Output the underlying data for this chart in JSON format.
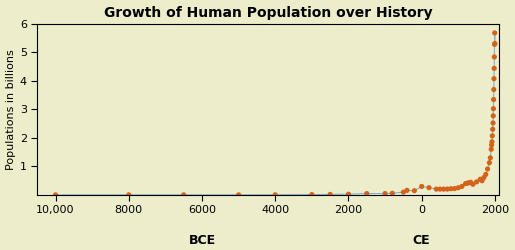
{
  "title": "Growth of Human Population over History",
  "ylabel": "Populations in billions",
  "xlabel_bce": "BCE",
  "xlabel_ce": "CE",
  "background_color": "#ededcc",
  "plot_bg_color": "#ededcc",
  "dot_color": "#d4631a",
  "line_color": "#7ab0d4",
  "ylim": [
    0,
    6
  ],
  "yticks": [
    1,
    2,
    3,
    4,
    5,
    6
  ],
  "data": [
    [
      -10000,
      0.005
    ],
    [
      -8000,
      0.005
    ],
    [
      -6500,
      0.005
    ],
    [
      -5000,
      0.005
    ],
    [
      -4000,
      0.007
    ],
    [
      -3000,
      0.014
    ],
    [
      -2500,
      0.02
    ],
    [
      -2000,
      0.027
    ],
    [
      -1500,
      0.05
    ],
    [
      -1000,
      0.05
    ],
    [
      -800,
      0.06
    ],
    [
      -500,
      0.1
    ],
    [
      -400,
      0.162
    ],
    [
      -200,
      0.15
    ],
    [
      1,
      0.3
    ],
    [
      200,
      0.256
    ],
    [
      400,
      0.206
    ],
    [
      500,
      0.206
    ],
    [
      600,
      0.206
    ],
    [
      700,
      0.207
    ],
    [
      800,
      0.22
    ],
    [
      900,
      0.226
    ],
    [
      1000,
      0.254
    ],
    [
      1100,
      0.301
    ],
    [
      1200,
      0.4
    ],
    [
      1250,
      0.416
    ],
    [
      1300,
      0.432
    ],
    [
      1340,
      0.443
    ],
    [
      1400,
      0.374
    ],
    [
      1500,
      0.46
    ],
    [
      1600,
      0.55
    ],
    [
      1650,
      0.5
    ],
    [
      1700,
      0.61
    ],
    [
      1750,
      0.72
    ],
    [
      1800,
      0.91
    ],
    [
      1850,
      1.13
    ],
    [
      1875,
      1.3
    ],
    [
      1900,
      1.6
    ],
    [
      1910,
      1.75
    ],
    [
      1920,
      1.86
    ],
    [
      1930,
      2.07
    ],
    [
      1940,
      2.3
    ],
    [
      1950,
      2.52
    ],
    [
      1955,
      2.77
    ],
    [
      1960,
      3.02
    ],
    [
      1965,
      3.34
    ],
    [
      1970,
      3.69
    ],
    [
      1975,
      4.07
    ],
    [
      1980,
      4.43
    ],
    [
      1985,
      4.83
    ],
    [
      1990,
      5.27
    ],
    [
      1995,
      5.67
    ],
    [
      2000,
      5.3
    ]
  ],
  "xticks_values": [
    -10000,
    -8000,
    -6000,
    -4000,
    -2000,
    0,
    2000
  ],
  "xticks_labels": [
    "10,000",
    "8000",
    "6000",
    "4000",
    "2000",
    "0",
    "2000"
  ],
  "bce_tick": -6000,
  "ce_tick": 0,
  "xlim": [
    -10500,
    2100
  ]
}
